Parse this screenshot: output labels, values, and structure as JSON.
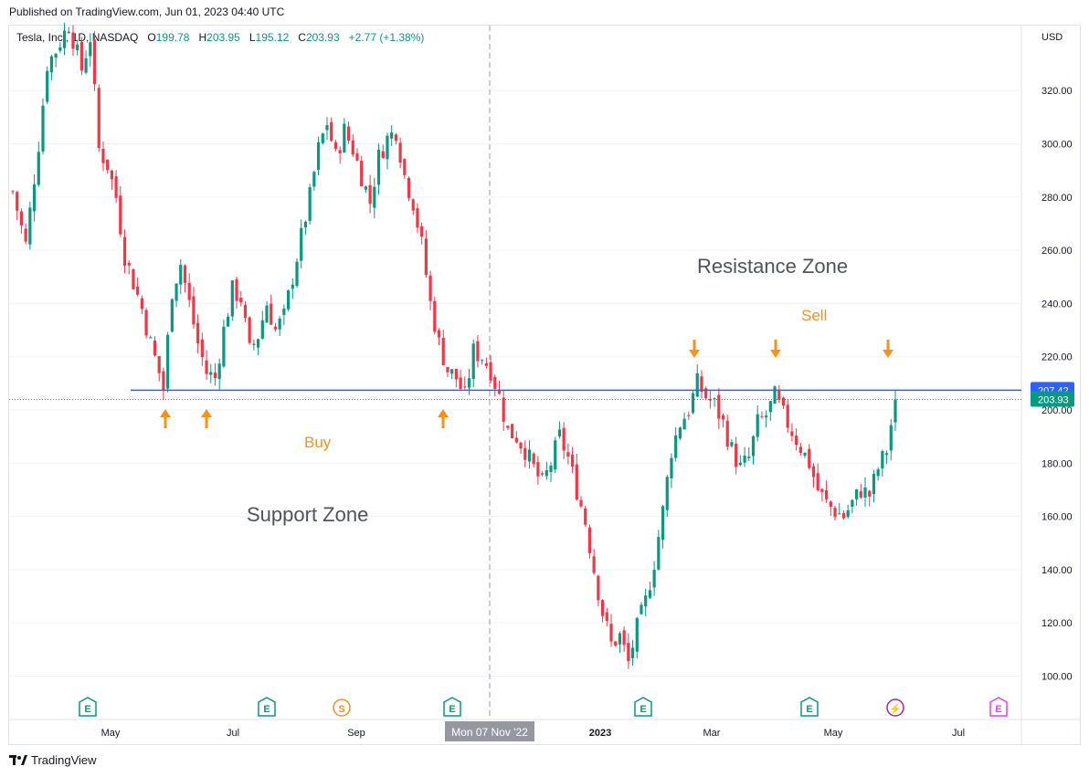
{
  "header": {
    "published": "Published on TradingView.com, Jun 01, 2023 04:40 UTC"
  },
  "legend": {
    "symbol": "Tesla, Inc., 1D, NASDAQ",
    "open_label": "O",
    "open": "199.78",
    "high_label": "H",
    "high": "203.95",
    "low_label": "L",
    "low": "195.12",
    "close_label": "C",
    "close": "203.93",
    "change": "+2.77 (+1.38%)"
  },
  "footer": {
    "brand": "TradingView"
  },
  "colors": {
    "up": "#089981",
    "down": "#f23645",
    "level": "#2962ff",
    "annotation": "#f7931a",
    "zone_text": "#50535e",
    "earnings": "#089981",
    "dividend": "#f7931a",
    "split": "#9c27b0",
    "future_earnings": "#e040fb"
  },
  "chart_data": {
    "type": "candlestick",
    "currency": "USD",
    "y_range": [
      85,
      345
    ],
    "y_ticks": [
      "100.00",
      "120.00",
      "140.00",
      "160.00",
      "180.00",
      "200.00",
      "220.00",
      "240.00",
      "260.00",
      "280.00",
      "300.00",
      "320.00"
    ],
    "x_ticks": [
      "May",
      "Jul",
      "Sep",
      "2023",
      "Mar",
      "May",
      "Jul"
    ],
    "crosshair_label": "Mon 07 Nov '22",
    "horizontal_level": {
      "value": 207.42,
      "label": "207.42"
    },
    "last_price": {
      "value": 203.93,
      "label": "203.93"
    },
    "annotations": {
      "resistance": "Resistance Zone",
      "support": "Support Zone",
      "buy": "Buy",
      "sell": "Sell"
    },
    "buy_arrows_count": 3,
    "sell_arrows_count": 3,
    "event_markers": [
      {
        "type": "earnings",
        "letter": "E"
      },
      {
        "type": "earnings",
        "letter": "E"
      },
      {
        "type": "dividend",
        "letter": "S"
      },
      {
        "type": "earnings",
        "letter": "E"
      },
      {
        "type": "earnings",
        "letter": "E"
      },
      {
        "type": "earnings",
        "letter": "E"
      },
      {
        "type": "split",
        "letter": "⚡"
      },
      {
        "type": "future_earnings",
        "letter": "E"
      }
    ],
    "price_path": [
      [
        0,
        282
      ],
      [
        3,
        262
      ],
      [
        6,
        300
      ],
      [
        8,
        330
      ],
      [
        10,
        335
      ],
      [
        13,
        345
      ],
      [
        16,
        328
      ],
      [
        18,
        340
      ],
      [
        20,
        298
      ],
      [
        22,
        292
      ],
      [
        24,
        280
      ],
      [
        26,
        258
      ],
      [
        28,
        248
      ],
      [
        30,
        238
      ],
      [
        32,
        225
      ],
      [
        34,
        214
      ],
      [
        35,
        208
      ],
      [
        37,
        245
      ],
      [
        39,
        255
      ],
      [
        41,
        240
      ],
      [
        43,
        225
      ],
      [
        45,
        214
      ],
      [
        47,
        212
      ],
      [
        49,
        230
      ],
      [
        51,
        245
      ],
      [
        53,
        242
      ],
      [
        55,
        222
      ],
      [
        57,
        228
      ],
      [
        59,
        240
      ],
      [
        61,
        230
      ],
      [
        63,
        235
      ],
      [
        65,
        250
      ],
      [
        67,
        265
      ],
      [
        69,
        280
      ],
      [
        71,
        298
      ],
      [
        73,
        308
      ],
      [
        75,
        295
      ],
      [
        77,
        305
      ],
      [
        79,
        298
      ],
      [
        81,
        288
      ],
      [
        83,
        278
      ],
      [
        85,
        295
      ],
      [
        87,
        302
      ],
      [
        89,
        305
      ],
      [
        91,
        288
      ],
      [
        93,
        278
      ],
      [
        95,
        262
      ],
      [
        97,
        240
      ],
      [
        99,
        225
      ],
      [
        101,
        215
      ],
      [
        103,
        212
      ],
      [
        105,
        205
      ],
      [
        107,
        222
      ],
      [
        109,
        220
      ],
      [
        111,
        215
      ],
      [
        113,
        205
      ],
      [
        115,
        192
      ],
      [
        117,
        190
      ],
      [
        119,
        185
      ],
      [
        121,
        178
      ],
      [
        123,
        172
      ],
      [
        125,
        180
      ],
      [
        127,
        190
      ],
      [
        129,
        182
      ],
      [
        131,
        170
      ],
      [
        133,
        158
      ],
      [
        135,
        140
      ],
      [
        137,
        124
      ],
      [
        139,
        112
      ],
      [
        141,
        115
      ],
      [
        143,
        105
      ],
      [
        145,
        118
      ],
      [
        147,
        128
      ],
      [
        149,
        143
      ],
      [
        151,
        162
      ],
      [
        153,
        185
      ],
      [
        155,
        195
      ],
      [
        157,
        200
      ],
      [
        159,
        210
      ],
      [
        161,
        205
      ],
      [
        163,
        202
      ],
      [
        165,
        195
      ],
      [
        167,
        185
      ],
      [
        169,
        178
      ],
      [
        171,
        182
      ],
      [
        173,
        195
      ],
      [
        175,
        198
      ],
      [
        177,
        205
      ],
      [
        179,
        198
      ],
      [
        181,
        192
      ],
      [
        183,
        186
      ],
      [
        185,
        180
      ],
      [
        187,
        170
      ],
      [
        189,
        165
      ],
      [
        191,
        162
      ],
      [
        193,
        160
      ],
      [
        195,
        165
      ],
      [
        197,
        170
      ],
      [
        199,
        168
      ],
      [
        201,
        178
      ],
      [
        203,
        185
      ],
      [
        205,
        203.93
      ]
    ]
  }
}
